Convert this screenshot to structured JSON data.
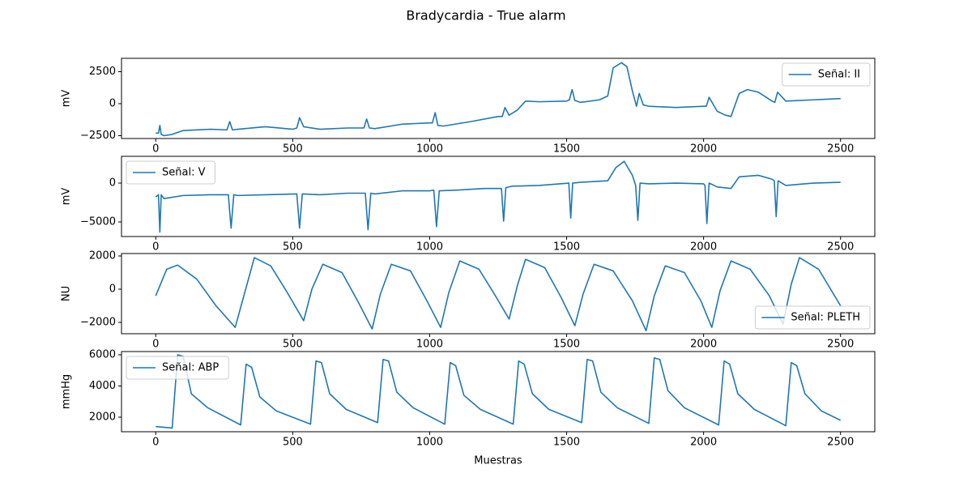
{
  "title": "Bradycardia - True alarm",
  "chart_data": [
    {
      "type": "line",
      "ylabel": "mV",
      "legend": "upper right",
      "xlim": [
        -125,
        2625
      ],
      "xticks": [
        0,
        500,
        1000,
        1500,
        2000,
        2500
      ],
      "ylim": [
        -2722,
        3544
      ],
      "yticks": [
        {
          "value": -2500,
          "label": "−2500"
        },
        0,
        2500
      ],
      "x": [
        0,
        10,
        15,
        20,
        30,
        60,
        100,
        200,
        260,
        270,
        280,
        300,
        400,
        500,
        515,
        525,
        540,
        600,
        700,
        760,
        770,
        780,
        800,
        900,
        1000,
        1010,
        1020,
        1030,
        1050,
        1150,
        1250,
        1265,
        1275,
        1290,
        1320,
        1350,
        1400,
        1500,
        1510,
        1520,
        1530,
        1550,
        1620,
        1650,
        1670,
        1700,
        1720,
        1740,
        1755,
        1765,
        1780,
        1800,
        1900,
        2000,
        2010,
        2020,
        2050,
        2080,
        2100,
        2130,
        2160,
        2200,
        2250,
        2260,
        2270,
        2300,
        2400,
        2500
      ],
      "series": [
        {
          "name": "Señal: II",
          "color": "#1f77b4",
          "values": [
            -2300,
            -2300,
            -1700,
            -2400,
            -2500,
            -2400,
            -2100,
            -2000,
            -2050,
            -1400,
            -2050,
            -2000,
            -1800,
            -2000,
            -1900,
            -1100,
            -1800,
            -2000,
            -1900,
            -1900,
            -1200,
            -1900,
            -1950,
            -1600,
            -1500,
            -1500,
            -700,
            -1700,
            -1750,
            -1400,
            -1000,
            -1000,
            -300,
            -900,
            -500,
            200,
            150,
            200,
            300,
            1100,
            250,
            100,
            300,
            600,
            2800,
            3200,
            2900,
            1000,
            -200,
            800,
            -100,
            -200,
            -300,
            -200,
            -200,
            500,
            -600,
            -900,
            -1000,
            800,
            1100,
            900,
            200,
            100,
            900,
            200,
            300,
            400
          ]
        }
      ]
    },
    {
      "type": "line",
      "ylabel": "mV",
      "legend": "upper left",
      "xlim": [
        -125,
        2625
      ],
      "xticks": [
        0,
        500,
        1000,
        1500,
        2000,
        2500
      ],
      "ylim": [
        -6875,
        3440
      ],
      "yticks": [
        {
          "value": -5000,
          "label": "−5000"
        },
        0
      ],
      "x": [
        0,
        10,
        15,
        20,
        30,
        100,
        200,
        265,
        275,
        285,
        300,
        400,
        515,
        525,
        535,
        600,
        700,
        765,
        775,
        785,
        800,
        900,
        1000,
        1015,
        1025,
        1035,
        1100,
        1200,
        1262,
        1270,
        1278,
        1300,
        1400,
        1508,
        1515,
        1522,
        1550,
        1650,
        1680,
        1710,
        1740,
        1752,
        1760,
        1768,
        1800,
        1900,
        2000,
        2005,
        2012,
        2020,
        2050,
        2100,
        2130,
        2200,
        2250,
        2258,
        2265,
        2272,
        2300,
        2400,
        2500
      ],
      "series": [
        {
          "name": "Señal: V",
          "color": "#1f77b4",
          "values": [
            -1800,
            -1500,
            -6300,
            -1500,
            -2000,
            -1600,
            -1500,
            -1500,
            -5800,
            -1500,
            -1600,
            -1500,
            -1400,
            -5800,
            -1400,
            -1500,
            -1300,
            -1300,
            -6000,
            -1300,
            -1400,
            -1000,
            -1000,
            -900,
            -5600,
            -1000,
            -900,
            -700,
            -700,
            -4900,
            -600,
            -400,
            -300,
            0,
            -4500,
            0,
            100,
            300,
            2000,
            2800,
            1000,
            -300,
            -4800,
            0,
            -100,
            0,
            -100,
            -300,
            -5200,
            0,
            -500,
            -700,
            800,
            1000,
            500,
            300,
            -4300,
            300,
            -300,
            0,
            100
          ]
        }
      ]
    },
    {
      "type": "line",
      "ylabel": "NU",
      "legend": "lower right",
      "xlim": [
        -125,
        2625
      ],
      "xticks": [
        0,
        500,
        1000,
        1500,
        2000,
        2500
      ],
      "ylim": [
        -2683,
        2146
      ],
      "yticks": [
        {
          "value": -2000,
          "label": "−2000"
        },
        0,
        2000
      ],
      "x": [
        0,
        40,
        80,
        150,
        220,
        290,
        320,
        360,
        420,
        480,
        540,
        570,
        610,
        680,
        740,
        790,
        820,
        860,
        930,
        990,
        1040,
        1070,
        1110,
        1180,
        1240,
        1290,
        1320,
        1350,
        1420,
        1480,
        1530,
        1560,
        1600,
        1670,
        1740,
        1790,
        1820,
        1860,
        1930,
        1990,
        2030,
        2060,
        2100,
        2170,
        2240,
        2290,
        2320,
        2350,
        2420,
        2500
      ],
      "series": [
        {
          "name": "Señal: PLETH",
          "color": "#1f77b4",
          "values": [
            -400,
            1200,
            1450,
            600,
            -1000,
            -2300,
            -500,
            1900,
            1400,
            -200,
            -1900,
            0,
            1500,
            1000,
            -800,
            -2400,
            -300,
            1500,
            1100,
            -700,
            -2300,
            -200,
            1700,
            1200,
            -400,
            -1800,
            200,
            1800,
            1300,
            -500,
            -2200,
            -300,
            1500,
            1100,
            -700,
            -2500,
            -400,
            1400,
            1000,
            -700,
            -2300,
            -100,
            1700,
            1200,
            -400,
            -2100,
            300,
            1900,
            1200,
            -1000
          ]
        }
      ]
    },
    {
      "type": "line",
      "ylabel": "mmHg",
      "xlabel": "Muestras",
      "legend": "upper left",
      "xlim": [
        -125,
        2625
      ],
      "xticks": [
        0,
        500,
        1000,
        1500,
        2000,
        2500
      ],
      "ylim": [
        1065,
        6208
      ],
      "yticks": [
        2000,
        4000,
        6000
      ],
      "x": [
        0,
        60,
        80,
        100,
        130,
        190,
        310,
        330,
        350,
        380,
        440,
        565,
        585,
        605,
        635,
        695,
        810,
        830,
        850,
        880,
        940,
        1055,
        1075,
        1095,
        1125,
        1185,
        1305,
        1325,
        1345,
        1375,
        1435,
        1555,
        1575,
        1595,
        1625,
        1685,
        1800,
        1820,
        1840,
        1870,
        1930,
        2055,
        2075,
        2095,
        2125,
        2185,
        2300,
        2320,
        2340,
        2370,
        2430,
        2500
      ],
      "series": [
        {
          "name": "Señal: ABP",
          "color": "#1f77b4",
          "values": [
            1400,
            1300,
            6000,
            5900,
            3500,
            2600,
            1500,
            5400,
            5200,
            3300,
            2400,
            1550,
            5600,
            5500,
            3500,
            2500,
            1650,
            5700,
            5600,
            3600,
            2600,
            1550,
            5500,
            5300,
            3400,
            2500,
            1550,
            5600,
            5400,
            3500,
            2500,
            1650,
            5700,
            5600,
            3600,
            2600,
            1600,
            5800,
            5700,
            3700,
            2600,
            1500,
            5600,
            5400,
            3500,
            2500,
            1450,
            5500,
            5300,
            3500,
            2400,
            1800
          ]
        }
      ]
    }
  ]
}
